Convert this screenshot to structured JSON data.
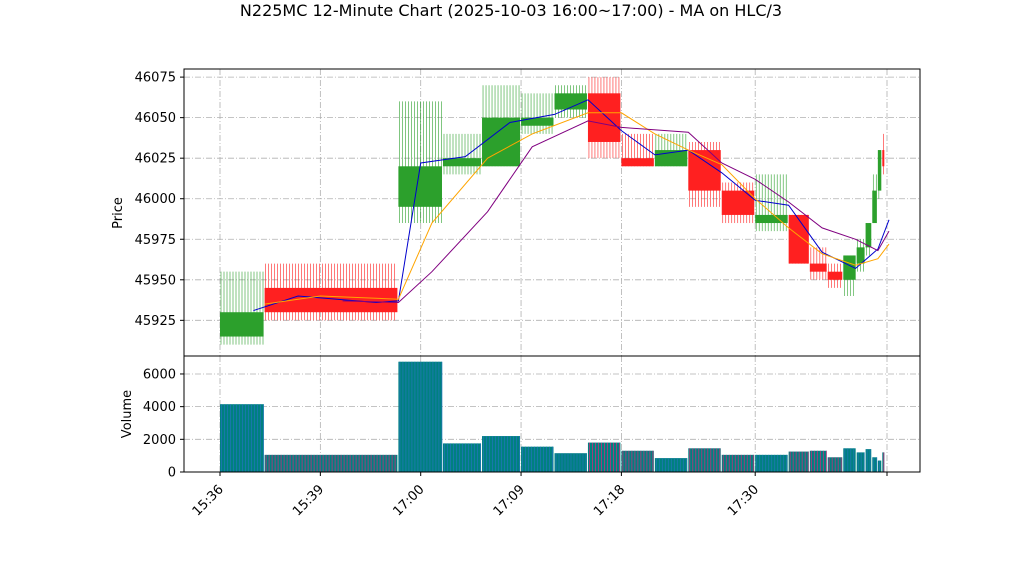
{
  "chart_data": {
    "type": "candlestick",
    "title": "N225MC 12-Minute Chart (2025-10-03 16:00~17:00) - MA on HLC/3",
    "xlabel": "",
    "price_panel": {
      "ylabel": "Price",
      "ylim": [
        45903,
        46080
      ],
      "yticks": [
        45925,
        45950,
        45975,
        46000,
        46025,
        46050,
        46075
      ],
      "grid": true
    },
    "volume_panel": {
      "ylabel": "Volume",
      "ylim": [
        0,
        7100
      ],
      "yticks": [
        0,
        2000,
        4000,
        6000
      ],
      "grid": true
    },
    "xticks": [
      {
        "label": "15:36",
        "index": 0
      },
      {
        "label": "15:39",
        "index": 9
      },
      {
        "label": "17:00",
        "index": 18
      },
      {
        "label": "17:09",
        "index": 27
      },
      {
        "label": "17:18",
        "index": 36
      },
      {
        "label": "17:30",
        "index": 48
      }
    ],
    "colors": {
      "up": "#2ca02c",
      "down": "#ff2020",
      "ma_blue": "#0000cd",
      "ma_orange": "#ffa500",
      "ma_purple": "#800080",
      "volume": "#008080",
      "grid": "#b0b0b0"
    },
    "candles": [
      {
        "t": 0,
        "o": 45915,
        "h": 45955,
        "l": 45910,
        "c": 45930,
        "v": 4150
      },
      {
        "t": 4,
        "o": 45945,
        "h": 45960,
        "l": 45925,
        "c": 45930,
        "v": 1050
      },
      {
        "t": 16,
        "o": 45995,
        "h": 46060,
        "l": 45985,
        "c": 46020,
        "v": 6750
      },
      {
        "t": 20,
        "o": 46020,
        "h": 46040,
        "l": 46015,
        "c": 46025,
        "v": 1750
      },
      {
        "t": 23.5,
        "o": 46020,
        "h": 46070,
        "l": 46020,
        "c": 46050,
        "v": 2200
      },
      {
        "t": 27,
        "o": 46045,
        "h": 46065,
        "l": 46040,
        "c": 46050,
        "v": 1550
      },
      {
        "t": 30,
        "o": 46055,
        "h": 46070,
        "l": 46050,
        "c": 46065,
        "v": 1150
      },
      {
        "t": 33,
        "o": 46065,
        "h": 46075,
        "l": 46025,
        "c": 46035,
        "v": 1800
      },
      {
        "t": 36,
        "o": 46025,
        "h": 46040,
        "l": 46020,
        "c": 46020,
        "v": 1300
      },
      {
        "t": 39,
        "o": 46020,
        "h": 46040,
        "l": 46020,
        "c": 46030,
        "v": 850
      },
      {
        "t": 42,
        "o": 46030,
        "h": 46035,
        "l": 45995,
        "c": 46005,
        "v": 1450
      },
      {
        "t": 45,
        "o": 46005,
        "h": 46010,
        "l": 45985,
        "c": 45990,
        "v": 1050
      },
      {
        "t": 48,
        "o": 45985,
        "h": 46015,
        "l": 45980,
        "c": 45990,
        "v": 1050
      },
      {
        "t": 51,
        "o": 45990,
        "h": 45990,
        "l": 45960,
        "c": 45960,
        "v": 1250
      },
      {
        "t": 52.9,
        "o": 45960,
        "h": 45970,
        "l": 45950,
        "c": 45955,
        "v": 1300
      },
      {
        "t": 54.5,
        "o": 45955,
        "h": 45960,
        "l": 45945,
        "c": 45950,
        "v": 900
      },
      {
        "t": 55.9,
        "o": 45950,
        "h": 45965,
        "l": 45940,
        "c": 45965,
        "v": 1450
      },
      {
        "t": 57.1,
        "o": 45960,
        "h": 45975,
        "l": 45955,
        "c": 45970,
        "v": 1200
      },
      {
        "t": 57.9,
        "o": 45970,
        "h": 45985,
        "l": 45965,
        "c": 45985,
        "v": 1400
      },
      {
        "t": 58.5,
        "o": 45985,
        "h": 46015,
        "l": 45985,
        "c": 46005,
        "v": 900
      },
      {
        "t": 59,
        "o": 46005,
        "h": 46030,
        "l": 46000,
        "c": 46030,
        "v": 700
      },
      {
        "t": 59.4,
        "o": 46030,
        "h": 46040,
        "l": 46015,
        "c": 46020,
        "v": 1200
      }
    ],
    "ma_series": [
      {
        "name": "",
        "color": "#0000cd",
        "points": [
          [
            3,
            45931
          ],
          [
            7,
            45940
          ],
          [
            14,
            45936
          ],
          [
            16,
            45937
          ],
          [
            18,
            46022
          ],
          [
            22,
            46026
          ],
          [
            26,
            46047
          ],
          [
            30,
            46052
          ],
          [
            33,
            46061
          ],
          [
            36,
            46042
          ],
          [
            39,
            46027
          ],
          [
            42,
            46030
          ],
          [
            45,
            46016
          ],
          [
            48,
            45999
          ],
          [
            51,
            45996
          ],
          [
            54,
            45967
          ],
          [
            57,
            45957
          ],
          [
            59,
            45969
          ],
          [
            60,
            45987
          ]
        ]
      },
      {
        "name": "",
        "color": "#ffa500",
        "points": [
          [
            4,
            45935
          ],
          [
            9,
            45940
          ],
          [
            16,
            45938
          ],
          [
            19,
            45985
          ],
          [
            24,
            46025
          ],
          [
            28,
            46040
          ],
          [
            33,
            46053
          ],
          [
            36,
            46053
          ],
          [
            39,
            46040
          ],
          [
            42,
            46030
          ],
          [
            45,
            46021
          ],
          [
            48,
            46000
          ],
          [
            51,
            45982
          ],
          [
            54,
            45966
          ],
          [
            57,
            45959
          ],
          [
            59,
            45963
          ],
          [
            60,
            45972
          ]
        ]
      },
      {
        "name": "",
        "color": "#800080",
        "points": [
          [
            11,
            45937
          ],
          [
            16,
            45936
          ],
          [
            19,
            45955
          ],
          [
            24,
            45992
          ],
          [
            28,
            46032
          ],
          [
            33,
            46048
          ],
          [
            36,
            46044
          ],
          [
            42,
            46041
          ],
          [
            45,
            46022
          ],
          [
            48,
            46012
          ],
          [
            51,
            45998
          ],
          [
            54,
            45982
          ],
          [
            57,
            45975
          ],
          [
            59,
            45968
          ],
          [
            60,
            45980
          ]
        ]
      }
    ]
  }
}
